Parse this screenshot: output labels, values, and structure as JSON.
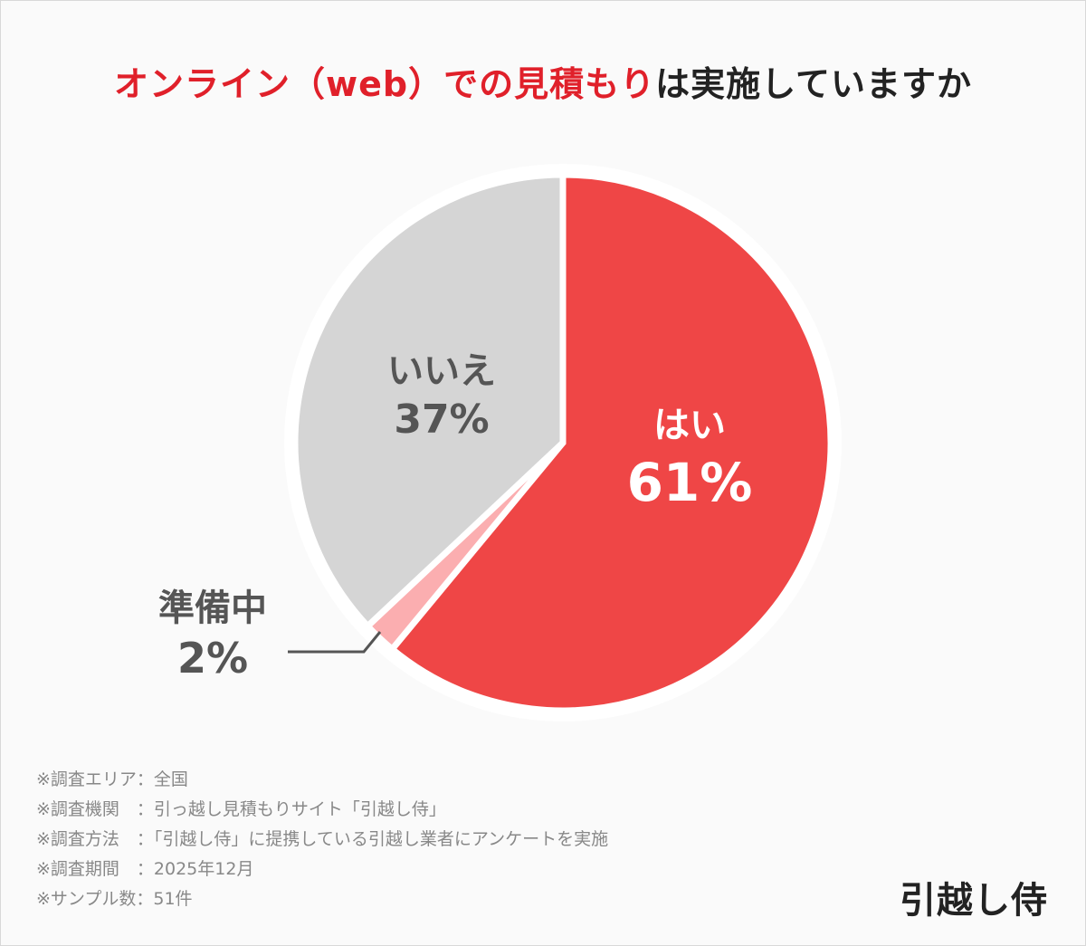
{
  "chart_data": {
    "type": "pie",
    "title_highlight": "オンライン（web）での見積もり",
    "title_rest": "は実施していますか",
    "start": "top",
    "direction": "clockwise",
    "slices": [
      {
        "label": "はい",
        "value": 61,
        "value_label": "61%",
        "color": "#ef4646"
      },
      {
        "label": "準備中",
        "value": 2,
        "value_label": "2%",
        "color": "#fbaeb0"
      },
      {
        "label": "いいえ",
        "value": 37,
        "value_label": "37%",
        "color": "#d5d5d5"
      }
    ]
  },
  "notes": [
    "※調査エリア：全国",
    "※調査機関　：引っ越し見積もりサイト「引越し侍」",
    "※調査方法　：「引越し侍」に提携している引越し業者にアンケートを実施",
    "※調査期間　：2025年12月",
    "※サンプル数：51件"
  ],
  "logo": "引越し侍",
  "colors": {
    "title_red": "#e0202a",
    "background": "#fafafa"
  }
}
